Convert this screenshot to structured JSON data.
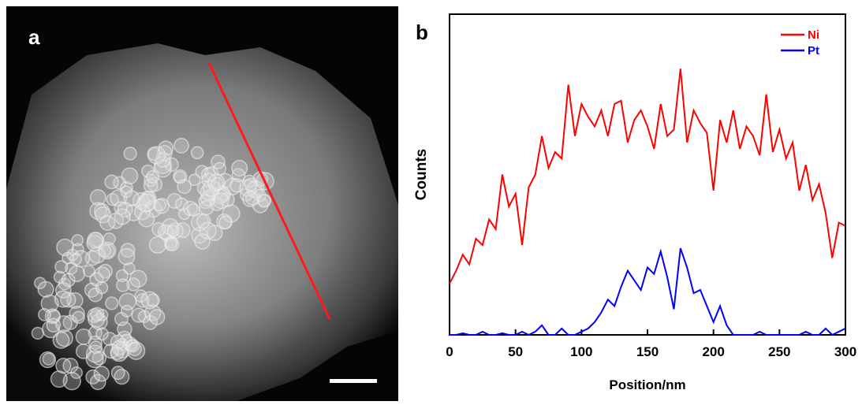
{
  "image_panel": {
    "label": "a"
  },
  "chart_data": {
    "type": "line",
    "panel_label": "b",
    "x_label": "Position/nm",
    "y_label": "Counts",
    "x": [
      0,
      5,
      10,
      15,
      20,
      25,
      30,
      35,
      40,
      45,
      50,
      55,
      60,
      65,
      70,
      75,
      80,
      85,
      90,
      95,
      100,
      105,
      110,
      115,
      120,
      125,
      130,
      135,
      140,
      145,
      150,
      155,
      160,
      165,
      170,
      175,
      180,
      185,
      190,
      195,
      200,
      205,
      210,
      215,
      220,
      225,
      230,
      235,
      240,
      245,
      250,
      255,
      260,
      265,
      270,
      275,
      280,
      285,
      290,
      295,
      300
    ],
    "series": [
      {
        "name": "Ni",
        "color": "#ff0000",
        "values": [
          16,
          20,
          25,
          22,
          30,
          28,
          36,
          33,
          50,
          40,
          44,
          28,
          46,
          50,
          62,
          52,
          57,
          55,
          78,
          62,
          72,
          68,
          65,
          70,
          62,
          72,
          73,
          60,
          67,
          70,
          65,
          58,
          72,
          62,
          64,
          83,
          60,
          70,
          66,
          63,
          45,
          67,
          60,
          70,
          58,
          65,
          62,
          56,
          75,
          57,
          64,
          55,
          60,
          45,
          53,
          42,
          47,
          38,
          24,
          35,
          34
        ]
      },
      {
        "name": "Pt",
        "color": "#0000ff",
        "values": [
          0,
          0,
          0.5,
          0,
          0,
          1,
          0,
          0,
          0.5,
          0,
          0,
          1,
          0,
          1,
          3,
          0,
          0,
          2,
          0,
          0,
          1,
          2,
          4,
          7,
          11,
          9,
          15,
          20,
          17,
          14,
          21,
          19,
          26,
          18,
          8,
          27,
          21,
          13,
          14,
          9,
          4,
          9,
          3,
          0,
          0,
          0,
          0,
          1,
          0,
          0,
          0,
          0,
          0,
          0,
          1,
          0,
          0,
          2,
          0,
          1,
          2
        ]
      }
    ],
    "xlim": [
      0,
      300
    ],
    "xticks": [
      0,
      50,
      100,
      150,
      200,
      250,
      300
    ],
    "ylim": [
      0,
      100
    ],
    "legend": "upper right"
  }
}
